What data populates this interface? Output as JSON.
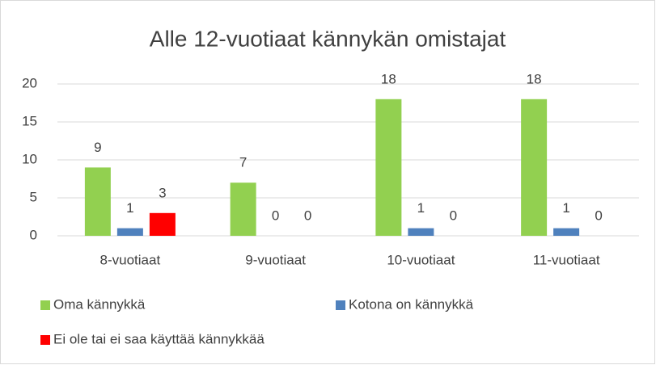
{
  "chart_data": {
    "type": "bar",
    "title": "Alle 12-vuotiaat kännykän omistajat",
    "categories": [
      "8-vuotiaat",
      "9-vuotiaat",
      "10-vuotiaat",
      "11-vuotiaat"
    ],
    "series": [
      {
        "name": "Oma kännykkä",
        "color": "#92d050",
        "values": [
          9,
          7,
          18,
          18
        ]
      },
      {
        "name": "Kotona on kännykkä",
        "color": "#4f81bd",
        "values": [
          1,
          0,
          1,
          1
        ]
      },
      {
        "name": "Ei ole tai ei saa käyttää kännykkää",
        "color": "#ff0000",
        "values": [
          3,
          0,
          0,
          0
        ]
      }
    ],
    "ylim": [
      0,
      20
    ],
    "yticks": [
      0,
      5,
      10,
      15,
      20
    ],
    "grid": true,
    "data_labels": true,
    "legend": "bottom"
  }
}
